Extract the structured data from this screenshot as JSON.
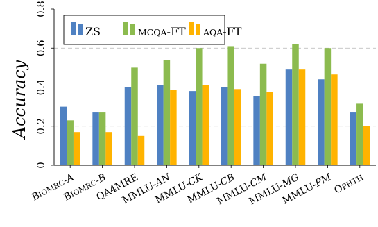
{
  "chart_data": {
    "type": "bar",
    "ylabel": "Accuracy",
    "xlabel": "",
    "title": "",
    "ylim": [
      0,
      0.8
    ],
    "yticks": [
      0,
      0.2,
      0.4,
      0.6,
      0.8
    ],
    "ytick_labels": [
      "0",
      "0.2",
      "0.4",
      "0.6",
      "0.8"
    ],
    "grid": "horizontal dashed",
    "legend_position": "top-left",
    "categories": [
      "BIOMRC-A",
      "BIOMRC-B",
      "QA4MRE",
      "MMLU-AN",
      "MMLU-CK",
      "MMLU-CB",
      "MMLU-CM",
      "MMLU-MG",
      "MMLU-PM",
      "OPHTH"
    ],
    "category_labels": [
      {
        "pre": "B",
        "small": "IOMRC",
        "post": "-A"
      },
      {
        "pre": "B",
        "small": "IOMRC",
        "post": "-B"
      },
      {
        "pre": "QA4MRE",
        "small": "",
        "post": ""
      },
      {
        "pre": "MMLU-",
        "small": "",
        "post": "AN"
      },
      {
        "pre": "MMLU-",
        "small": "",
        "post": "CK"
      },
      {
        "pre": "MMLU-",
        "small": "",
        "post": "CB"
      },
      {
        "pre": "MMLU-",
        "small": "",
        "post": "CM"
      },
      {
        "pre": "MMLU-",
        "small": "",
        "post": "MG"
      },
      {
        "pre": "MMLU-",
        "small": "",
        "post": "PM"
      },
      {
        "pre": "O",
        "small": "PHTH",
        "post": ""
      }
    ],
    "series": [
      {
        "name": "ZS",
        "legend_pre": "ZS",
        "legend_small": "",
        "legend_post": "",
        "color": "#4f81c2",
        "values": [
          0.3,
          0.27,
          0.4,
          0.41,
          0.38,
          0.4,
          0.355,
          0.49,
          0.44,
          0.27
        ]
      },
      {
        "name": "MCQA-FT",
        "legend_pre": "",
        "legend_small": "MCQA",
        "legend_post": "-FT",
        "color": "#8cbb4f",
        "values": [
          0.23,
          0.27,
          0.5,
          0.54,
          0.6,
          0.61,
          0.52,
          0.62,
          0.6,
          0.315
        ]
      },
      {
        "name": "AQA-FT",
        "legend_pre": "",
        "legend_small": "AQA",
        "legend_post": "-FT",
        "color": "#ffb300",
        "values": [
          0.17,
          0.17,
          0.15,
          0.385,
          0.41,
          0.39,
          0.375,
          0.49,
          0.465,
          0.2
        ]
      }
    ]
  }
}
